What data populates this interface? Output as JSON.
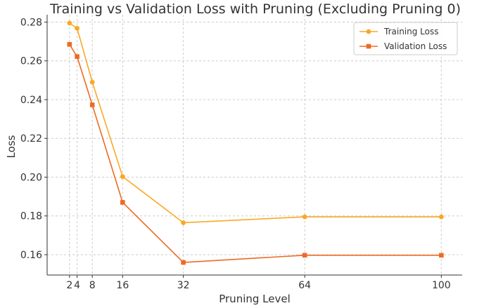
{
  "chart_data": {
    "type": "line",
    "title": "Training vs Validation Loss with Pruning (Excluding Pruning 0)",
    "xlabel": "Pruning Level",
    "ylabel": "Loss",
    "x": [
      2,
      4,
      8,
      16,
      32,
      64,
      100
    ],
    "x_ticks": [
      2,
      4,
      8,
      16,
      32,
      64,
      100
    ],
    "x_tick_labels": [
      "2",
      "4",
      "8",
      "16",
      "32",
      "64",
      "100"
    ],
    "y_ticks": [
      0.16,
      0.18,
      0.2,
      0.22,
      0.24,
      0.26,
      0.28
    ],
    "y_tick_labels": [
      "0.16",
      "0.18",
      "0.20",
      "0.22",
      "0.24",
      "0.26",
      "0.28"
    ],
    "xlim": [
      -3.9,
      105.5
    ],
    "ylim": [
      0.1495,
      0.2838
    ],
    "grid": true,
    "legend_position": "top-right",
    "series": [
      {
        "name": "Training Loss",
        "color": "#F9A825",
        "marker": "circle",
        "values": [
          0.2795,
          0.2768,
          0.249,
          0.2003,
          0.1765,
          0.1795,
          0.1795
        ]
      },
      {
        "name": "Validation Loss",
        "color": "#EE6A24",
        "marker": "square",
        "values": [
          0.2685,
          0.2622,
          0.2373,
          0.187,
          0.156,
          0.1597,
          0.1597
        ]
      }
    ]
  }
}
